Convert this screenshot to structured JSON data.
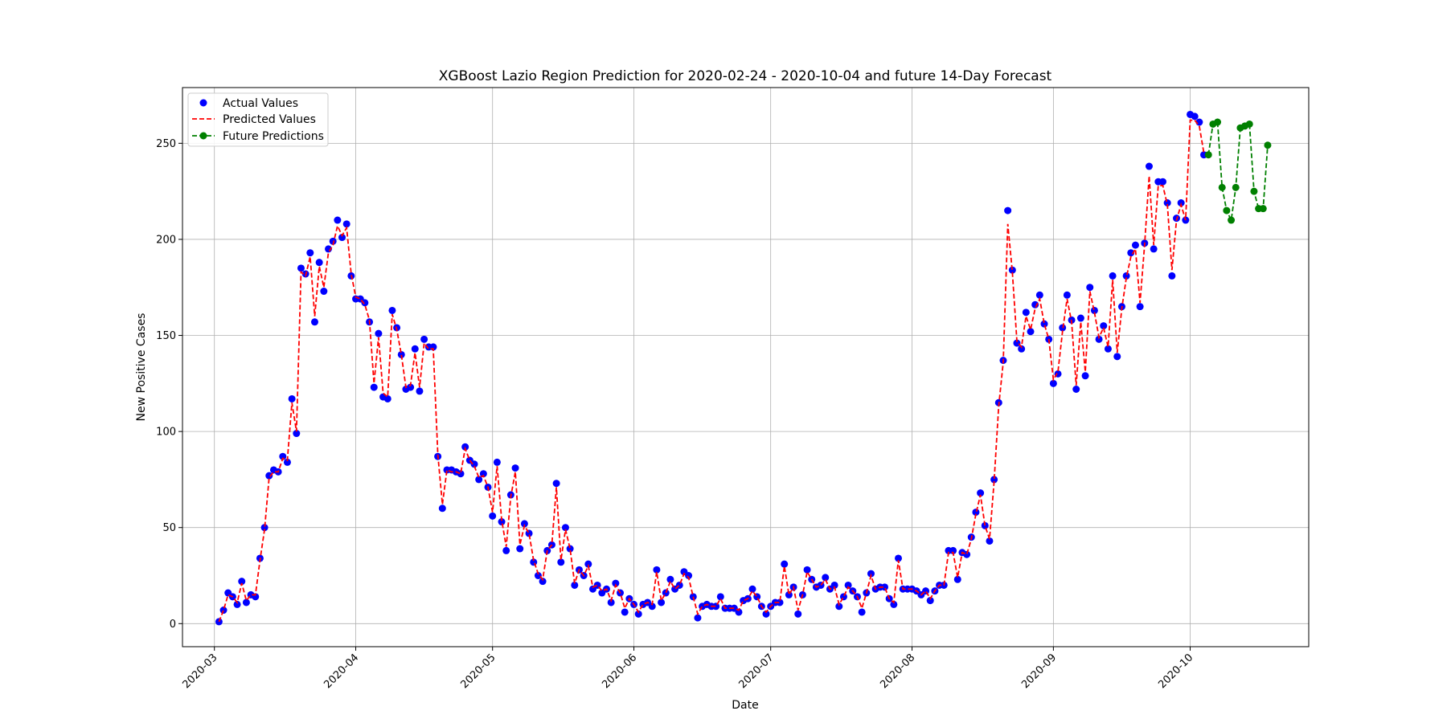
{
  "chart_data": {
    "type": "line",
    "title": "XGBoost Lazio Region Prediction for 2020-02-24 - 2020-10-04 and future 14-Day Forecast",
    "xlabel": "Date",
    "ylabel": "New Positive Cases",
    "x_start": "2020-03-02",
    "x_range": [
      "2020-02-23",
      "2020-10-27"
    ],
    "ylim": [
      -12,
      279
    ],
    "yticks": [
      0,
      50,
      100,
      150,
      200,
      250
    ],
    "xticks": [
      "2020-03-01",
      "2020-04-01",
      "2020-05-01",
      "2020-06-01",
      "2020-07-01",
      "2020-08-01",
      "2020-09-01",
      "2020-10-01"
    ],
    "xtick_labels": [
      "2020-03",
      "2020-04",
      "2020-05",
      "2020-06",
      "2020-07",
      "2020-08",
      "2020-09",
      "2020-10"
    ],
    "grid": true,
    "legend_position": "top-left",
    "colors": {
      "actual": "#0000ff",
      "predicted": "#ff0000",
      "future": "#008000"
    },
    "series": [
      {
        "name": "Actual Values",
        "style": "markers",
        "values": [
          1,
          7,
          16,
          14,
          10,
          22,
          11,
          15,
          14,
          34,
          50,
          77,
          80,
          79,
          87,
          84,
          117,
          99,
          185,
          182,
          193,
          157,
          188,
          173,
          195,
          199,
          210,
          201,
          208,
          181,
          169,
          169,
          167,
          157,
          123,
          151,
          118,
          117,
          163,
          154,
          140,
          122,
          123,
          143,
          121,
          148,
          144,
          144,
          87,
          60,
          80,
          80,
          79,
          78,
          92,
          85,
          83,
          75,
          78,
          71,
          56,
          84,
          53,
          38,
          67,
          81,
          39,
          52,
          47,
          32,
          25,
          22,
          38,
          41,
          73,
          32,
          50,
          39,
          20,
          28,
          25,
          31,
          18,
          20,
          16,
          18,
          11,
          21,
          16,
          6,
          13,
          10,
          5,
          10,
          11,
          9,
          28,
          11,
          16,
          23,
          18,
          20,
          27,
          25,
          14,
          3,
          9,
          10,
          9,
          9,
          14,
          8,
          8,
          8,
          6,
          12,
          13,
          18,
          14,
          9,
          5,
          9,
          11,
          11,
          31,
          15,
          19,
          5,
          15,
          28,
          23,
          19,
          20,
          24,
          18,
          20,
          9,
          14,
          20,
          17,
          14,
          6,
          16,
          26,
          18,
          19,
          19,
          13,
          10,
          34,
          18,
          18,
          18,
          17,
          15,
          17,
          12,
          17,
          20,
          20,
          38,
          38,
          23,
          37,
          36,
          45,
          58,
          68,
          51,
          43,
          75,
          115,
          137,
          215,
          184,
          146,
          143,
          162,
          152,
          166,
          171,
          156,
          148,
          125,
          130,
          154,
          171,
          158,
          122,
          159,
          129,
          175,
          163,
          148,
          155,
          143,
          181,
          139,
          165,
          181,
          193,
          197,
          165,
          198,
          238,
          195,
          230,
          230,
          219,
          181,
          211,
          219,
          210,
          265,
          264,
          261,
          244
        ]
      },
      {
        "name": "Predicted Values",
        "style": "dashed",
        "values": [
          1,
          7,
          15,
          14,
          11,
          21,
          12,
          15,
          15,
          33,
          49,
          76,
          79,
          79,
          86,
          85,
          115,
          100,
          183,
          181,
          191,
          160,
          186,
          175,
          193,
          197,
          207,
          202,
          206,
          182,
          170,
          169,
          166,
          158,
          125,
          149,
          120,
          118,
          161,
          153,
          140,
          123,
          124,
          141,
          123,
          146,
          143,
          143,
          88,
          62,
          80,
          79,
          79,
          78,
          91,
          85,
          82,
          76,
          77,
          71,
          58,
          82,
          54,
          40,
          66,
          79,
          41,
          51,
          47,
          33,
          26,
          23,
          38,
          41,
          71,
          33,
          49,
          39,
          21,
          28,
          25,
          30,
          19,
          20,
          17,
          18,
          12,
          20,
          16,
          8,
          13,
          10,
          6,
          10,
          11,
          10,
          27,
          12,
          16,
          22,
          18,
          20,
          26,
          24,
          14,
          5,
          9,
          10,
          9,
          9,
          13,
          8,
          8,
          8,
          7,
          12,
          13,
          17,
          14,
          9,
          6,
          9,
          11,
          11,
          30,
          15,
          19,
          7,
          15,
          27,
          23,
          19,
          20,
          23,
          18,
          19,
          10,
          14,
          19,
          17,
          14,
          8,
          16,
          25,
          18,
          19,
          19,
          13,
          11,
          33,
          18,
          18,
          18,
          17,
          15,
          17,
          13,
          17,
          20,
          20,
          37,
          37,
          24,
          37,
          36,
          44,
          57,
          67,
          51,
          44,
          74,
          113,
          136,
          208,
          183,
          147,
          144,
          160,
          153,
          164,
          169,
          156,
          148,
          127,
          131,
          152,
          169,
          157,
          124,
          157,
          131,
          173,
          162,
          149,
          154,
          144,
          179,
          141,
          164,
          180,
          191,
          195,
          167,
          197,
          233,
          197,
          228,
          228,
          218,
          184,
          210,
          218,
          210,
          262,
          262,
          259,
          245
        ]
      },
      {
        "name": "Future Predictions",
        "style": "dashed-markers",
        "values": [
          244,
          260,
          261,
          227,
          215,
          210,
          227,
          258,
          259,
          260,
          225,
          216,
          216,
          249
        ]
      }
    ]
  }
}
